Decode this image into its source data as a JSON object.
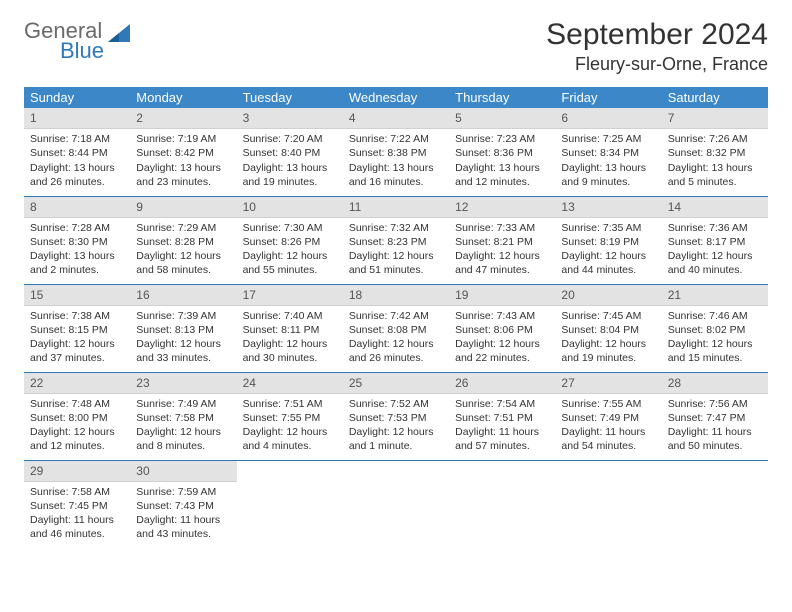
{
  "logo": {
    "word1": "General",
    "word2": "Blue",
    "accent_color": "#2f79b9",
    "gray": "#6a6a6a"
  },
  "title": "September 2024",
  "location": "Fleury-sur-Orne, France",
  "header_bg": "#3b87c8",
  "header_fg": "#ffffff",
  "daynum_bg": "#e3e3e3",
  "row_border": "#2f79b9",
  "weekdays": [
    "Sunday",
    "Monday",
    "Tuesday",
    "Wednesday",
    "Thursday",
    "Friday",
    "Saturday"
  ],
  "weeks": [
    [
      {
        "n": "1",
        "sunrise": "7:18 AM",
        "sunset": "8:44 PM",
        "daylight": "13 hours and 26 minutes."
      },
      {
        "n": "2",
        "sunrise": "7:19 AM",
        "sunset": "8:42 PM",
        "daylight": "13 hours and 23 minutes."
      },
      {
        "n": "3",
        "sunrise": "7:20 AM",
        "sunset": "8:40 PM",
        "daylight": "13 hours and 19 minutes."
      },
      {
        "n": "4",
        "sunrise": "7:22 AM",
        "sunset": "8:38 PM",
        "daylight": "13 hours and 16 minutes."
      },
      {
        "n": "5",
        "sunrise": "7:23 AM",
        "sunset": "8:36 PM",
        "daylight": "13 hours and 12 minutes."
      },
      {
        "n": "6",
        "sunrise": "7:25 AM",
        "sunset": "8:34 PM",
        "daylight": "13 hours and 9 minutes."
      },
      {
        "n": "7",
        "sunrise": "7:26 AM",
        "sunset": "8:32 PM",
        "daylight": "13 hours and 5 minutes."
      }
    ],
    [
      {
        "n": "8",
        "sunrise": "7:28 AM",
        "sunset": "8:30 PM",
        "daylight": "13 hours and 2 minutes."
      },
      {
        "n": "9",
        "sunrise": "7:29 AM",
        "sunset": "8:28 PM",
        "daylight": "12 hours and 58 minutes."
      },
      {
        "n": "10",
        "sunrise": "7:30 AM",
        "sunset": "8:26 PM",
        "daylight": "12 hours and 55 minutes."
      },
      {
        "n": "11",
        "sunrise": "7:32 AM",
        "sunset": "8:23 PM",
        "daylight": "12 hours and 51 minutes."
      },
      {
        "n": "12",
        "sunrise": "7:33 AM",
        "sunset": "8:21 PM",
        "daylight": "12 hours and 47 minutes."
      },
      {
        "n": "13",
        "sunrise": "7:35 AM",
        "sunset": "8:19 PM",
        "daylight": "12 hours and 44 minutes."
      },
      {
        "n": "14",
        "sunrise": "7:36 AM",
        "sunset": "8:17 PM",
        "daylight": "12 hours and 40 minutes."
      }
    ],
    [
      {
        "n": "15",
        "sunrise": "7:38 AM",
        "sunset": "8:15 PM",
        "daylight": "12 hours and 37 minutes."
      },
      {
        "n": "16",
        "sunrise": "7:39 AM",
        "sunset": "8:13 PM",
        "daylight": "12 hours and 33 minutes."
      },
      {
        "n": "17",
        "sunrise": "7:40 AM",
        "sunset": "8:11 PM",
        "daylight": "12 hours and 30 minutes."
      },
      {
        "n": "18",
        "sunrise": "7:42 AM",
        "sunset": "8:08 PM",
        "daylight": "12 hours and 26 minutes."
      },
      {
        "n": "19",
        "sunrise": "7:43 AM",
        "sunset": "8:06 PM",
        "daylight": "12 hours and 22 minutes."
      },
      {
        "n": "20",
        "sunrise": "7:45 AM",
        "sunset": "8:04 PM",
        "daylight": "12 hours and 19 minutes."
      },
      {
        "n": "21",
        "sunrise": "7:46 AM",
        "sunset": "8:02 PM",
        "daylight": "12 hours and 15 minutes."
      }
    ],
    [
      {
        "n": "22",
        "sunrise": "7:48 AM",
        "sunset": "8:00 PM",
        "daylight": "12 hours and 12 minutes."
      },
      {
        "n": "23",
        "sunrise": "7:49 AM",
        "sunset": "7:58 PM",
        "daylight": "12 hours and 8 minutes."
      },
      {
        "n": "24",
        "sunrise": "7:51 AM",
        "sunset": "7:55 PM",
        "daylight": "12 hours and 4 minutes."
      },
      {
        "n": "25",
        "sunrise": "7:52 AM",
        "sunset": "7:53 PM",
        "daylight": "12 hours and 1 minute."
      },
      {
        "n": "26",
        "sunrise": "7:54 AM",
        "sunset": "7:51 PM",
        "daylight": "11 hours and 57 minutes."
      },
      {
        "n": "27",
        "sunrise": "7:55 AM",
        "sunset": "7:49 PM",
        "daylight": "11 hours and 54 minutes."
      },
      {
        "n": "28",
        "sunrise": "7:56 AM",
        "sunset": "7:47 PM",
        "daylight": "11 hours and 50 minutes."
      }
    ],
    [
      {
        "n": "29",
        "sunrise": "7:58 AM",
        "sunset": "7:45 PM",
        "daylight": "11 hours and 46 minutes."
      },
      {
        "n": "30",
        "sunrise": "7:59 AM",
        "sunset": "7:43 PM",
        "daylight": "11 hours and 43 minutes."
      },
      null,
      null,
      null,
      null,
      null
    ]
  ],
  "labels": {
    "sunrise": "Sunrise:",
    "sunset": "Sunset:",
    "daylight": "Daylight:"
  }
}
